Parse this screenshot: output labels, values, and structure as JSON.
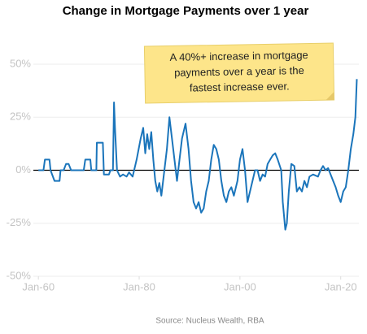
{
  "chart_data": {
    "type": "line",
    "title": "Change in Mortgage Payments over 1 year",
    "source": "Source: Nucleus Wealth, RBA",
    "annotation": [
      "A 40%+ increase in mortgage",
      "payments over a year is the",
      "fastest increase ever."
    ],
    "color": "#1b75bb",
    "grid": true,
    "xlim": [
      1959,
      2023.6
    ],
    "xticks": [
      {
        "value": 1960,
        "label": "Jan-60"
      },
      {
        "value": 1980,
        "label": "Jan-80"
      },
      {
        "value": 2000,
        "label": "Jan-00"
      },
      {
        "value": 2020,
        "label": "Jan-20"
      }
    ],
    "ylim": [
      -50,
      50
    ],
    "yticks": [
      {
        "value": -50,
        "label": "-50%"
      },
      {
        "value": -25,
        "label": "-25%"
      },
      {
        "value": 0,
        "label": "0%"
      },
      {
        "value": 25,
        "label": "25%"
      },
      {
        "value": 50,
        "label": "50%"
      }
    ],
    "x": [
      1960,
      1961,
      1961.3,
      1962.2,
      1962.4,
      1963.2,
      1964.2,
      1964.4,
      1965,
      1965.5,
      1966,
      1966.5,
      1969,
      1969.3,
      1970.3,
      1970.5,
      1971.5,
      1971.6,
      1972.8,
      1973,
      1974,
      1974.3,
      1974.8,
      1975,
      1975.2,
      1975.6,
      1976.2,
      1976.8,
      1977.5,
      1978,
      1978.7,
      1979.5,
      1980.3,
      1980.8,
      1981.2,
      1981.6,
      1982,
      1982.4,
      1982.8,
      1983.2,
      1983.6,
      1984,
      1984.4,
      1985,
      1985.5,
      1986,
      1986.5,
      1987,
      1987.5,
      1988,
      1988.5,
      1989.2,
      1989.8,
      1990.3,
      1990.8,
      1991.3,
      1991.8,
      1992.3,
      1992.8,
      1993.3,
      1993.8,
      1994.3,
      1994.8,
      1995.3,
      1995.8,
      1996.3,
      1996.8,
      1997.3,
      1997.8,
      1998.3,
      1998.8,
      1999.5,
      2000,
      2000.5,
      2001,
      2001.5,
      2001.8,
      2002.5,
      2003,
      2003.5,
      2004,
      2004.5,
      2005,
      2005.5,
      2006,
      2006.5,
      2007,
      2007.5,
      2008.2,
      2008.5,
      2009,
      2009.3,
      2009.7,
      2010.2,
      2010.8,
      2011.3,
      2011.8,
      2012.3,
      2012.8,
      2013.3,
      2013.8,
      2014.5,
      2015.5,
      2016,
      2016.5,
      2017,
      2017.5,
      2018,
      2018.5,
      2019,
      2019.5,
      2020,
      2020.5,
      2021,
      2021.5,
      2022,
      2022.5,
      2022.9,
      2023.2
    ],
    "values": [
      0,
      0,
      5,
      5,
      0,
      -5,
      -5,
      0,
      0,
      3,
      3,
      0,
      0,
      5,
      5,
      0,
      0,
      13,
      13,
      -2,
      -2,
      0,
      0,
      32,
      20,
      0,
      -3,
      -2,
      -3,
      -1,
      -3,
      5,
      15,
      20,
      8,
      17,
      10,
      18,
      5,
      -5,
      -10,
      -6,
      -12,
      0,
      10,
      25,
      15,
      5,
      -5,
      5,
      15,
      22,
      10,
      -5,
      -15,
      -18,
      -15,
      -20,
      -18,
      -10,
      -5,
      5,
      12,
      10,
      5,
      -5,
      -12,
      -15,
      -10,
      -8,
      -12,
      -5,
      5,
      10,
      0,
      -15,
      -12,
      -5,
      0,
      0,
      -5,
      -2,
      -3,
      3,
      5,
      7,
      8,
      5,
      0,
      -15,
      -28,
      -25,
      -10,
      3,
      2,
      -10,
      -8,
      -10,
      -5,
      -8,
      -3,
      -2,
      -3,
      0,
      2,
      0,
      1,
      -2,
      -5,
      -8,
      -12,
      -15,
      -10,
      -8,
      0,
      10,
      17,
      25,
      43
    ]
  }
}
